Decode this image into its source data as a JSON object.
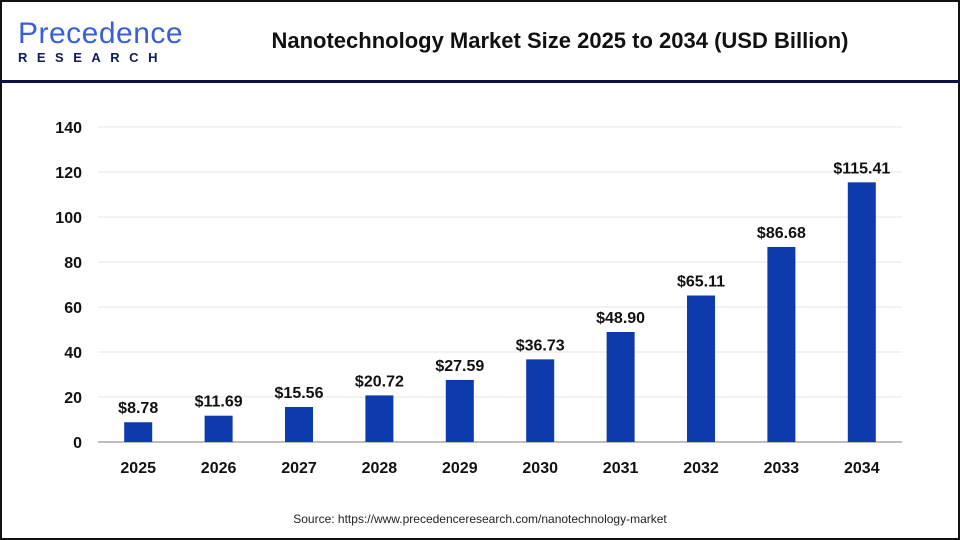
{
  "header": {
    "logo_main": "Precedence",
    "logo_sub": "RESEARCH",
    "title": "Nanotechnology Market Size 2025 to 2034 (USD Billion)"
  },
  "source": "Source: https://www.precedenceresearch.com/nanotechnology-market",
  "chart_data": {
    "type": "bar",
    "title": "Nanotechnology Market Size 2025 to 2034 (USD Billion)",
    "categories": [
      "2025",
      "2026",
      "2027",
      "2028",
      "2029",
      "2030",
      "2031",
      "2032",
      "2033",
      "2034"
    ],
    "values": [
      8.78,
      11.69,
      15.56,
      20.72,
      27.59,
      36.73,
      48.9,
      65.11,
      86.68,
      115.41
    ],
    "data_labels": [
      "$8.78",
      "$11.69",
      "$15.56",
      "$20.72",
      "$27.59",
      "$36.73",
      "$48.90",
      "$65.11",
      "$86.68",
      "$115.41"
    ],
    "ylim": [
      0,
      140
    ],
    "yticks": [
      0,
      20,
      40,
      60,
      80,
      100,
      120,
      140
    ],
    "grid": true,
    "bar_color": "#0d3aad",
    "xlabel": "",
    "ylabel": ""
  }
}
